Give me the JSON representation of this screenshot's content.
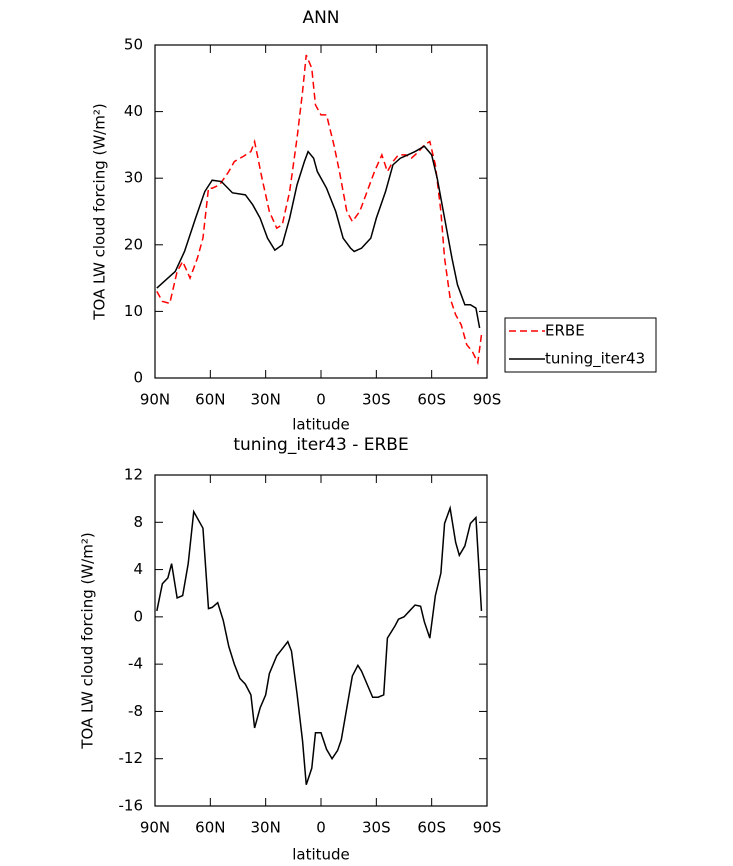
{
  "chart_data": [
    {
      "type": "line",
      "title": "ANN",
      "xlabel": "latitude",
      "ylabel": "TOA LW cloud forcing (W/m²)",
      "xlim": [
        90,
        -90
      ],
      "ylim": [
        0,
        50
      ],
      "xticks": [
        {
          "value": 90,
          "label": "90N"
        },
        {
          "value": 60,
          "label": "60N"
        },
        {
          "value": 30,
          "label": "30N"
        },
        0,
        {
          "value": -30,
          "label": "30S"
        },
        {
          "value": -60,
          "label": "60S"
        },
        {
          "value": -90,
          "label": "90S"
        }
      ],
      "yticks": [
        0,
        10,
        20,
        30,
        40,
        50
      ],
      "legend": "right",
      "grid": false,
      "series": [
        {
          "name": "ERBE",
          "color": "#ff0000",
          "line_style": "dashed",
          "x": [
            89,
            86,
            82,
            78,
            75,
            71,
            67,
            64,
            61,
            59,
            55,
            50,
            47,
            42,
            38,
            36,
            32,
            28,
            24,
            21,
            17,
            13,
            10,
            8,
            5,
            3,
            0,
            -3,
            -7,
            -10,
            -14,
            -17,
            -21,
            -25,
            -29,
            -33,
            -36,
            -39,
            -42,
            -46,
            -49,
            -53,
            -56,
            -59,
            -62,
            -65,
            -67,
            -70,
            -73,
            -76,
            -79,
            -82,
            -85,
            -87
          ],
          "values": [
            13,
            11.5,
            11.2,
            16,
            17.5,
            15,
            18,
            21,
            28.5,
            28.5,
            29,
            31,
            32.5,
            33.3,
            34,
            35.5,
            30,
            25,
            22.5,
            23,
            28,
            36,
            43,
            48.5,
            46.5,
            41,
            39.5,
            39.5,
            35,
            31,
            25,
            23.5,
            25,
            28,
            31,
            33.5,
            31,
            32.5,
            33.5,
            33.5,
            33,
            34,
            35,
            35.5,
            32,
            25,
            18,
            12,
            9.5,
            8,
            5,
            4,
            2.3,
            6.5
          ]
        },
        {
          "name": "tuning_iter43",
          "color": "#000000",
          "line_style": "solid",
          "x": [
            89,
            79,
            74,
            68,
            63,
            59,
            54,
            48,
            41,
            37,
            33,
            29,
            25,
            21,
            17,
            13,
            9,
            7,
            4,
            2,
            -3,
            -8,
            -12,
            -16,
            -18,
            -22,
            -27,
            -30,
            -35,
            -39,
            -43,
            -47,
            -51,
            -56,
            -60,
            -63,
            -67,
            -71,
            -74,
            -78,
            -81,
            -84,
            -86
          ],
          "values": [
            13.5,
            16,
            19,
            24,
            28,
            29.7,
            29.5,
            27.8,
            27.5,
            26,
            24,
            21,
            19.2,
            20,
            24,
            29,
            32.5,
            34,
            33,
            31,
            28.5,
            25,
            21,
            19.5,
            19,
            19.5,
            21,
            24,
            28,
            32,
            33,
            33.5,
            34,
            34.8,
            33.5,
            30,
            24,
            18,
            14,
            11,
            11,
            10.5,
            7.5
          ]
        }
      ]
    },
    {
      "type": "line",
      "title": "tuning_iter43 - ERBE",
      "xlabel": "latitude",
      "ylabel": "TOA LW cloud forcing (W/m²)",
      "xlim": [
        90,
        -90
      ],
      "ylim": [
        -16,
        12
      ],
      "xticks": [
        {
          "value": 90,
          "label": "90N"
        },
        {
          "value": 60,
          "label": "60N"
        },
        {
          "value": 30,
          "label": "30N"
        },
        0,
        {
          "value": -30,
          "label": "30S"
        },
        {
          "value": -60,
          "label": "60S"
        },
        {
          "value": -90,
          "label": "90S"
        }
      ],
      "yticks": [
        -16,
        -12,
        -8,
        -4,
        0,
        4,
        8,
        12
      ],
      "grid": false,
      "series": [
        {
          "color": "#000000",
          "line_style": "solid",
          "x": [
            89,
            86,
            83,
            81,
            78,
            75,
            72,
            69,
            64,
            61,
            59,
            56,
            53,
            50,
            47,
            44,
            41,
            38,
            36,
            33,
            30,
            28,
            24,
            21,
            18,
            16,
            13,
            10,
            8,
            5,
            3,
            0,
            -3,
            -6,
            -9,
            -11,
            -14,
            -17,
            -20,
            -22,
            -25,
            -28,
            -31,
            -34,
            -36,
            -40,
            -42,
            -45,
            -48,
            -51,
            -54,
            -56,
            -59,
            -62,
            -65,
            -67,
            -70,
            -73,
            -75,
            -78,
            -81,
            -84,
            -87
          ],
          "values": [
            0.5,
            2.8,
            3.3,
            4.5,
            1.6,
            1.8,
            4.5,
            8.9,
            7.5,
            0.7,
            0.8,
            1.2,
            -0.3,
            -2.5,
            -4,
            -5.2,
            -5.7,
            -6.6,
            -9.4,
            -7.7,
            -6.6,
            -4.8,
            -3.3,
            -2.7,
            -2.1,
            -2.9,
            -6.5,
            -10.5,
            -14.2,
            -12.8,
            -9.8,
            -9.8,
            -11.2,
            -12,
            -11.3,
            -10.4,
            -7.7,
            -5,
            -4.1,
            -4.6,
            -5.7,
            -6.8,
            -6.8,
            -6.6,
            -1.8,
            -0.8,
            -0.2,
            0,
            0.5,
            1,
            0.9,
            -0.4,
            -1.8,
            1.8,
            3.7,
            7.9,
            9.2,
            6.3,
            5.2,
            6,
            7.9,
            8.4,
            0.5
          ]
        }
      ]
    }
  ]
}
